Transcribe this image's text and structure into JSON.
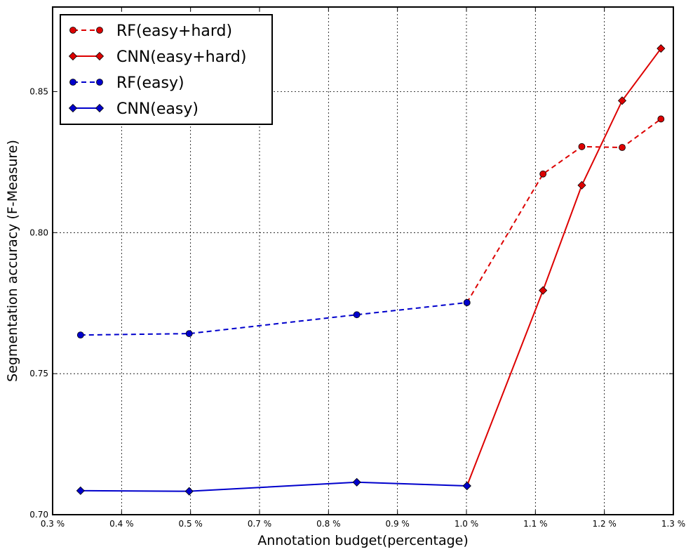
{
  "chart_data": {
    "type": "line",
    "xlabel": "Annotation budget(percentage)",
    "ylabel": "Segmentation accuracy (F-Measure)",
    "xlim": [
      0.3,
      1.3
    ],
    "ylim": [
      0.7,
      0.88
    ],
    "x_ticks": [
      0.3,
      0.4,
      0.5,
      0.7,
      0.8,
      0.9,
      1.0,
      1.1,
      1.2,
      1.3
    ],
    "x_tick_labels": [
      "0.3 %",
      "0.4 %",
      "0.5 %",
      "0.7 %",
      "0.8 %",
      "0.9 %",
      "1.0 %",
      "1.1 %",
      "1.2 %",
      "1.3 %"
    ],
    "y_ticks": [
      0.7,
      0.75,
      0.8,
      0.85
    ],
    "y_tick_labels": [
      "0.70",
      "0.75",
      "0.80",
      "0.85"
    ],
    "grid": true,
    "legend_position": "top-left",
    "series": [
      {
        "name": "RF(easy+hard)",
        "color": "#dd0000",
        "style": "dashed",
        "marker": "circle",
        "x": [
          0.9675,
          1.09,
          1.1525,
          1.2175,
          1.28
        ],
        "y": [
          0.7752,
          0.8208,
          0.8305,
          0.8302,
          0.8403
        ]
      },
      {
        "name": "CNN(easy+hard)",
        "color": "#dd0000",
        "style": "solid",
        "marker": "diamond",
        "x": [
          0.9675,
          1.09,
          1.1525,
          1.2175,
          1.28
        ],
        "y": [
          0.7102,
          0.7795,
          0.8168,
          0.8468,
          0.8653
        ]
      },
      {
        "name": "RF(easy)",
        "color": "#0000cc",
        "style": "dashed",
        "marker": "circle",
        "x": [
          0.345,
          0.52,
          0.79,
          0.9675
        ],
        "y": [
          0.7637,
          0.7642,
          0.7709,
          0.7752
        ]
      },
      {
        "name": "CNN(easy)",
        "color": "#0000cc",
        "style": "solid",
        "marker": "diamond",
        "x": [
          0.345,
          0.52,
          0.79,
          0.9675
        ],
        "y": [
          0.7085,
          0.7083,
          0.7115,
          0.7102
        ]
      }
    ]
  }
}
